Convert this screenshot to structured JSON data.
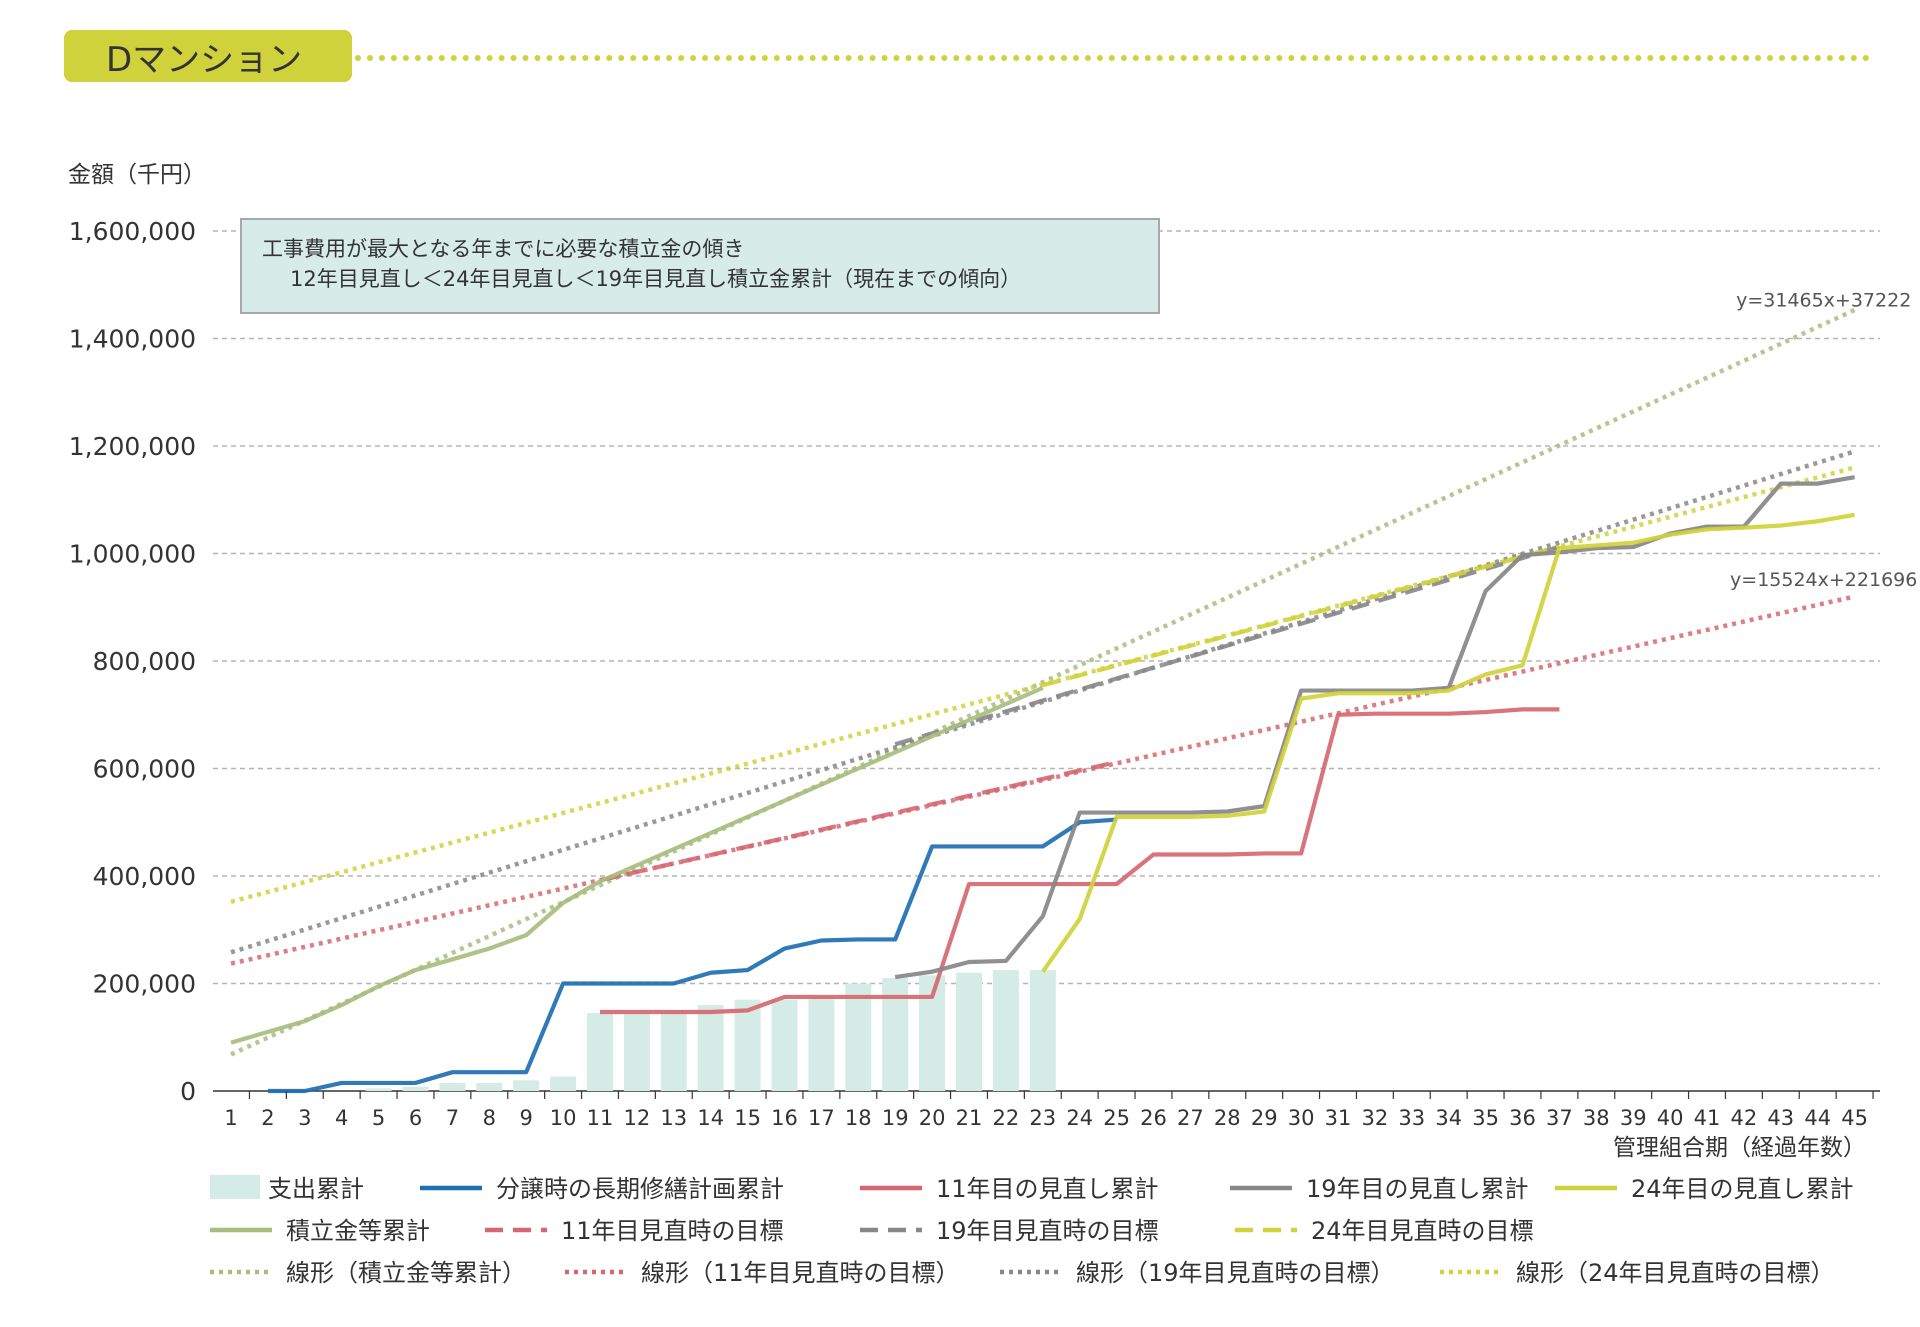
{
  "header": {
    "title": "Dマンション"
  },
  "note": {
    "line1": "工事費用が最大となる年までに必要な積立金の傾き",
    "line2": "12年目見直し＜24年目見直し＜19年目見直し積立金累計（現在までの傾向）"
  },
  "chart_data": {
    "type": "line",
    "ylabel": "金額（千円）",
    "xlabel": "管理組合期（経過年数）",
    "ylim": [
      0,
      1600000
    ],
    "yticks": [
      0,
      200000,
      400000,
      600000,
      800000,
      1000000,
      1200000,
      1400000,
      1600000
    ],
    "ytick_labels": [
      "0",
      "200,000",
      "400,000",
      "600,000",
      "800,000",
      "1,000,000",
      "1,200,000",
      "1,400,000",
      "1,600,000"
    ],
    "x": [
      1,
      2,
      3,
      4,
      5,
      6,
      7,
      8,
      9,
      10,
      11,
      12,
      13,
      14,
      15,
      16,
      17,
      18,
      19,
      20,
      21,
      22,
      23,
      24,
      25,
      26,
      27,
      28,
      29,
      30,
      31,
      32,
      33,
      34,
      35,
      36,
      37,
      38,
      39,
      40,
      41,
      42,
      43,
      44,
      45
    ],
    "grid": "horizontal dashed",
    "annotations": [
      {
        "text": "y=31465x+37222",
        "x": 44,
        "y": 1460000
      },
      {
        "text": "y=15524x+221696",
        "x": 44,
        "y": 940000
      }
    ],
    "series": [
      {
        "name": "支出累計",
        "kind": "bar",
        "color": "#d5ebe6",
        "x": [
          5,
          6,
          7,
          8,
          9,
          10,
          11,
          12,
          13,
          14,
          15,
          16,
          17,
          18,
          19,
          20,
          21,
          22,
          23
        ],
        "values": [
          5000,
          8000,
          15000,
          15000,
          20000,
          27000,
          145000,
          145000,
          150000,
          160000,
          170000,
          170000,
          175000,
          200000,
          210000,
          215000,
          220000,
          225000,
          225000
        ]
      },
      {
        "name": "分譲時の長期修繕計画累計",
        "kind": "line",
        "color": "#1f6fb3",
        "x": [
          2,
          3,
          4,
          5,
          6,
          7,
          8,
          9,
          10,
          11,
          12,
          13,
          14,
          15,
          16,
          17,
          18,
          19,
          20,
          21,
          22,
          23,
          24,
          25
        ],
        "values": [
          0,
          0,
          15000,
          15000,
          15000,
          35000,
          35000,
          35000,
          200000,
          200000,
          200000,
          200000,
          220000,
          225000,
          265000,
          280000,
          282000,
          282000,
          455000,
          455000,
          455000,
          455000,
          500000,
          505000
        ]
      },
      {
        "name": "11年目の見直し累計",
        "kind": "line",
        "color": "#d66771",
        "x": [
          11,
          12,
          13,
          14,
          15,
          16,
          17,
          18,
          19,
          20,
          21,
          22,
          23,
          24,
          25,
          26,
          27,
          28,
          29,
          30,
          31,
          32,
          33,
          34,
          35,
          36,
          37
        ],
        "values": [
          147000,
          147000,
          147000,
          147000,
          150000,
          175000,
          175000,
          175000,
          175000,
          175000,
          385000,
          385000,
          385000,
          385000,
          385000,
          440000,
          440000,
          440000,
          442000,
          442000,
          700000,
          702000,
          702000,
          702000,
          705000,
          710000,
          710000
        ]
      },
      {
        "name": "19年目の見直し累計",
        "kind": "line",
        "color": "#878787",
        "x": [
          19,
          20,
          21,
          22,
          23,
          24,
          25,
          26,
          27,
          28,
          29,
          30,
          31,
          32,
          33,
          34,
          35,
          36,
          37,
          38,
          39,
          40,
          41,
          42,
          43,
          44,
          45
        ],
        "values": [
          212000,
          222000,
          240000,
          242000,
          325000,
          518000,
          518000,
          518000,
          518000,
          520000,
          530000,
          745000,
          745000,
          745000,
          745000,
          750000,
          930000,
          997000,
          1002000,
          1010000,
          1012000,
          1037000,
          1050000,
          1050000,
          1130000,
          1130000,
          1142000
        ]
      },
      {
        "name": "24年目の見直し累計",
        "kind": "line",
        "color": "#cfd23a",
        "x": [
          23,
          24,
          25,
          26,
          27,
          28,
          29,
          30,
          31,
          32,
          33,
          34,
          35,
          36,
          37,
          38,
          39,
          40,
          41,
          42,
          43,
          44,
          45
        ],
        "values": [
          222000,
          320000,
          510000,
          510000,
          510000,
          512000,
          520000,
          730000,
          740000,
          740000,
          740000,
          745000,
          775000,
          792000,
          1010000,
          1015000,
          1020000,
          1035000,
          1045000,
          1048000,
          1052000,
          1060000,
          1072000
        ]
      },
      {
        "name": "積立金等累計",
        "kind": "line",
        "color": "#a8bd7e",
        "x": [
          1,
          2,
          3,
          4,
          5,
          6,
          7,
          8,
          9,
          10,
          11,
          12,
          13,
          14,
          15,
          16,
          17,
          18,
          19,
          20,
          21,
          22,
          23
        ],
        "values": [
          90000,
          110000,
          130000,
          160000,
          195000,
          225000,
          245000,
          265000,
          290000,
          350000,
          390000,
          420000,
          450000,
          480000,
          510000,
          540000,
          570000,
          600000,
          630000,
          660000,
          690000,
          720000,
          750000
        ]
      },
      {
        "name": "11年目見直時の目標",
        "kind": "dashed",
        "color": "#d66771",
        "x": [
          11,
          25
        ],
        "values": [
          392000,
          612000
        ]
      },
      {
        "name": "19年目見直時の目標",
        "kind": "dashed",
        "color": "#878787",
        "x": [
          19,
          37
        ],
        "values": [
          645000,
          1012000
        ]
      },
      {
        "name": "24年目見直時の目標",
        "kind": "dashed",
        "color": "#cfd23a",
        "x": [
          23,
          37
        ],
        "values": [
          755000,
          1012000
        ]
      },
      {
        "name": "線形（積立金等累計）",
        "kind": "dotted",
        "color": "#a8bd7e",
        "x": [
          1,
          45
        ],
        "values": [
          68000,
          1453000
        ]
      },
      {
        "name": "線形（11年目見直時の目標）",
        "kind": "dotted",
        "color": "#d66771",
        "x": [
          1,
          45
        ],
        "values": [
          237000,
          920000
        ]
      },
      {
        "name": "線形（19年目見直時の目標）",
        "kind": "dotted",
        "color": "#878787",
        "x": [
          1,
          45
        ],
        "values": [
          258000,
          1190000
        ]
      },
      {
        "name": "線形（24年目見直時の目標）",
        "kind": "dotted",
        "color": "#cfd23a",
        "x": [
          1,
          45
        ],
        "values": [
          352000,
          1160000
        ]
      }
    ]
  }
}
